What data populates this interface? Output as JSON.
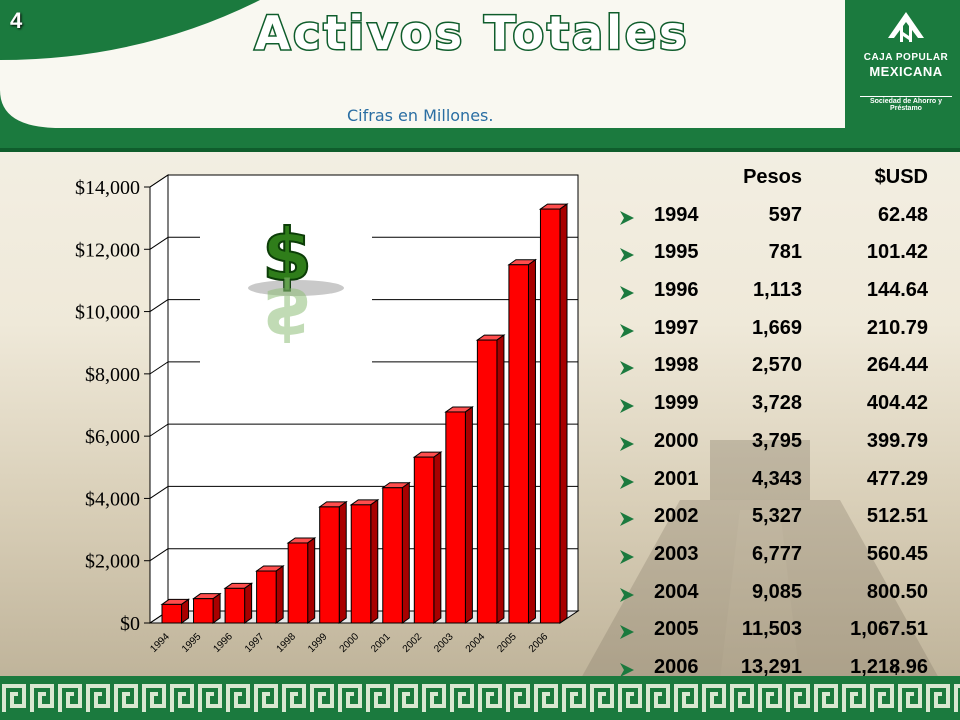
{
  "header": {
    "slide_number": "4",
    "title": "Activos Totales",
    "subtitle": "Cifras en Millones.",
    "logo": {
      "line1": "CAJA POPULAR",
      "line2": "MEXICANA",
      "line3": "Sociedad de Ahorro y Préstamo"
    }
  },
  "table": {
    "headers": {
      "pesos": "Pesos",
      "usd": "$USD"
    },
    "rows": [
      {
        "year": "1994",
        "pesos": "597",
        "usd": "62.48"
      },
      {
        "year": "1995",
        "pesos": "781",
        "usd": "101.42"
      },
      {
        "year": "1996",
        "pesos": "1,113",
        "usd": "144.64"
      },
      {
        "year": "1997",
        "pesos": "1,669",
        "usd": "210.79"
      },
      {
        "year": "1998",
        "pesos": "2,570",
        "usd": "264.44"
      },
      {
        "year": "1999",
        "pesos": "3,728",
        "usd": "404.42"
      },
      {
        "year": "2000",
        "pesos": "3,795",
        "usd": "399.79"
      },
      {
        "year": "2001",
        "pesos": "4,343",
        "usd": "477.29"
      },
      {
        "year": "2002",
        "pesos": "5,327",
        "usd": "512.51"
      },
      {
        "year": "2003",
        "pesos": "6,777",
        "usd": "560.45"
      },
      {
        "year": "2004",
        "pesos": "9,085",
        "usd": "800.50"
      },
      {
        "year": "2005",
        "pesos": "11,503",
        "usd": "1,067.51"
      },
      {
        "year": "2006",
        "pesos": "13,291",
        "usd": "1,218.96"
      }
    ]
  },
  "footer": {
    "slide_number": "4"
  },
  "chart_data": {
    "type": "bar",
    "title": "",
    "xlabel": "",
    "ylabel": "",
    "categories": [
      "1994",
      "1995",
      "1996",
      "1997",
      "1998",
      "1999",
      "2000",
      "2001",
      "2002",
      "2003",
      "2004",
      "2005",
      "2006"
    ],
    "values": [
      597,
      781,
      1113,
      1669,
      2570,
      3728,
      3795,
      4343,
      5327,
      6777,
      9085,
      11503,
      13291
    ],
    "ylim": [
      0,
      14000
    ],
    "yticks": [
      "$0",
      "$2,000",
      "$4,000",
      "$6,000",
      "$8,000",
      "$10,000",
      "$12,000",
      "$14,000"
    ],
    "grid": true,
    "legend": "none",
    "bar_color": "#ff0000",
    "bar_side_color": "#a80000"
  },
  "colors": {
    "header_green": "#1b7a3e",
    "subtitle_blue": "#2a6ea3",
    "bullet_green": "#1b7a3e"
  }
}
